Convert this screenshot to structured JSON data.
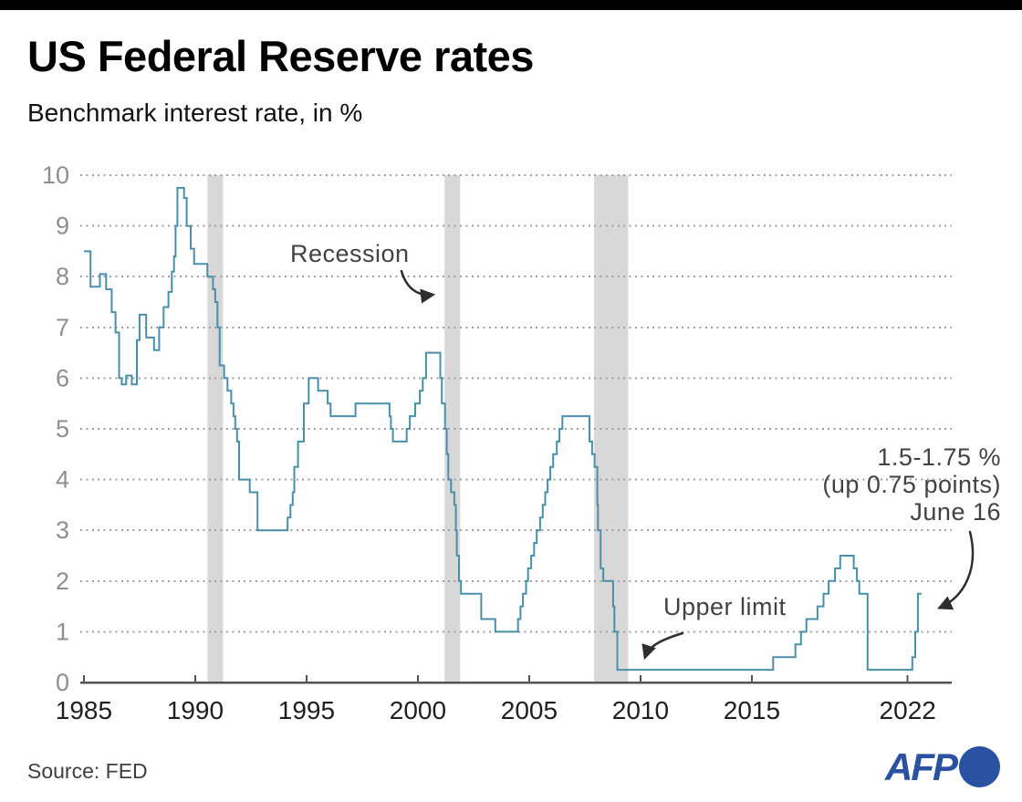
{
  "header": {
    "title": "US Federal Reserve rates",
    "subtitle": "Benchmark interest rate, in %"
  },
  "annotations": {
    "recession": "Recession",
    "upper_limit": "Upper limit",
    "latest_line1": "1.5-1.75 %",
    "latest_line2": "(up 0.75 points)",
    "latest_line3": "June 16"
  },
  "footer": {
    "source": "Source: FED",
    "logo_text": "AFP"
  },
  "colors": {
    "line": "#4a8fa9",
    "recession_band": "#d8d8d8",
    "gridline": "#9e9e9e",
    "axis": "#555555",
    "x_label": "#1f1f1f",
    "y_label": "#8e8e8e",
    "arrow": "#2e2e2e",
    "afp_blue": "#2b52a2"
  },
  "chart_data": {
    "type": "line",
    "step": true,
    "title": "US Federal Reserve rates",
    "ylabel": "Benchmark interest rate, in %",
    "xlim": [
      1984.84,
      2023.98
    ],
    "ylim": [
      0,
      10
    ],
    "grid": "dotted horizontal",
    "x_ticks": [
      {
        "year": 1985,
        "label": "1985"
      },
      {
        "year": 1990,
        "label": "1990"
      },
      {
        "year": 1995,
        "label": "1995"
      },
      {
        "year": 2000,
        "label": "2000"
      },
      {
        "year": 2005,
        "label": "2005"
      },
      {
        "year": 2010,
        "label": "2010"
      },
      {
        "year": 2015,
        "label": "2015"
      },
      {
        "year": 2022,
        "label": "2022"
      }
    ],
    "y_ticks": [
      0,
      1,
      2,
      3,
      4,
      5,
      6,
      7,
      8,
      9,
      10
    ],
    "recession_bands": [
      [
        1990.55,
        1991.25
      ],
      [
        2001.2,
        2001.9
      ],
      [
        2007.92,
        2009.45
      ]
    ],
    "series": [
      {
        "name": "Fed benchmark rate (upper limit)",
        "points": [
          [
            1985.0,
            8.5
          ],
          [
            1985.3,
            7.8
          ],
          [
            1985.72,
            8.05
          ],
          [
            1986.0,
            7.75
          ],
          [
            1986.25,
            7.3
          ],
          [
            1986.42,
            6.9
          ],
          [
            1986.58,
            6.0
          ],
          [
            1986.7,
            5.875
          ],
          [
            1986.9,
            6.05
          ],
          [
            1987.15,
            5.875
          ],
          [
            1987.38,
            6.75
          ],
          [
            1987.5,
            7.25
          ],
          [
            1987.8,
            6.8
          ],
          [
            1988.15,
            6.55
          ],
          [
            1988.38,
            7.0
          ],
          [
            1988.58,
            7.4
          ],
          [
            1988.8,
            7.7
          ],
          [
            1988.95,
            8.1
          ],
          [
            1989.05,
            8.4
          ],
          [
            1989.12,
            9.0
          ],
          [
            1989.2,
            9.75
          ],
          [
            1989.5,
            9.55
          ],
          [
            1989.62,
            9.0
          ],
          [
            1989.8,
            8.55
          ],
          [
            1989.95,
            8.25
          ],
          [
            1990.55,
            8.0
          ],
          [
            1990.8,
            7.75
          ],
          [
            1990.9,
            7.5
          ],
          [
            1991.0,
            7.0
          ],
          [
            1991.1,
            6.25
          ],
          [
            1991.3,
            6.0
          ],
          [
            1991.45,
            5.75
          ],
          [
            1991.62,
            5.5
          ],
          [
            1991.72,
            5.25
          ],
          [
            1991.8,
            5.0
          ],
          [
            1991.88,
            4.75
          ],
          [
            1991.97,
            4.0
          ],
          [
            1992.45,
            3.75
          ],
          [
            1992.8,
            3.0
          ],
          [
            1994.15,
            3.25
          ],
          [
            1994.28,
            3.5
          ],
          [
            1994.38,
            3.75
          ],
          [
            1994.45,
            4.25
          ],
          [
            1994.62,
            4.75
          ],
          [
            1994.88,
            5.5
          ],
          [
            1995.1,
            6.0
          ],
          [
            1995.52,
            5.75
          ],
          [
            1995.95,
            5.5
          ],
          [
            1996.08,
            5.25
          ],
          [
            1997.2,
            5.5
          ],
          [
            1998.73,
            5.25
          ],
          [
            1998.79,
            5.0
          ],
          [
            1998.88,
            4.75
          ],
          [
            1999.5,
            5.0
          ],
          [
            1999.64,
            5.25
          ],
          [
            1999.88,
            5.5
          ],
          [
            2000.09,
            5.75
          ],
          [
            2000.22,
            6.0
          ],
          [
            2000.37,
            6.5
          ],
          [
            2001.01,
            6.0
          ],
          [
            2001.08,
            5.5
          ],
          [
            2001.22,
            5.0
          ],
          [
            2001.3,
            4.5
          ],
          [
            2001.37,
            4.0
          ],
          [
            2001.49,
            3.75
          ],
          [
            2001.64,
            3.5
          ],
          [
            2001.71,
            3.0
          ],
          [
            2001.75,
            2.5
          ],
          [
            2001.85,
            2.0
          ],
          [
            2001.94,
            1.75
          ],
          [
            2002.85,
            1.25
          ],
          [
            2003.48,
            1.0
          ],
          [
            2004.5,
            1.25
          ],
          [
            2004.61,
            1.5
          ],
          [
            2004.72,
            1.75
          ],
          [
            2004.86,
            2.0
          ],
          [
            2004.95,
            2.25
          ],
          [
            2005.09,
            2.5
          ],
          [
            2005.22,
            2.75
          ],
          [
            2005.34,
            3.0
          ],
          [
            2005.49,
            3.25
          ],
          [
            2005.61,
            3.5
          ],
          [
            2005.72,
            3.75
          ],
          [
            2005.83,
            4.0
          ],
          [
            2005.95,
            4.25
          ],
          [
            2006.08,
            4.5
          ],
          [
            2006.24,
            4.75
          ],
          [
            2006.36,
            5.0
          ],
          [
            2006.49,
            5.25
          ],
          [
            2007.71,
            4.75
          ],
          [
            2007.83,
            4.5
          ],
          [
            2007.94,
            4.25
          ],
          [
            2008.06,
            3.5
          ],
          [
            2008.09,
            3.0
          ],
          [
            2008.21,
            2.25
          ],
          [
            2008.33,
            2.0
          ],
          [
            2008.77,
            1.5
          ],
          [
            2008.83,
            1.0
          ],
          [
            2008.96,
            0.25
          ],
          [
            2015.96,
            0.5
          ],
          [
            2016.96,
            0.75
          ],
          [
            2017.21,
            1.0
          ],
          [
            2017.45,
            1.25
          ],
          [
            2017.95,
            1.5
          ],
          [
            2018.22,
            1.75
          ],
          [
            2018.45,
            2.0
          ],
          [
            2018.74,
            2.25
          ],
          [
            2018.97,
            2.5
          ],
          [
            2019.58,
            2.25
          ],
          [
            2019.72,
            2.0
          ],
          [
            2019.83,
            1.75
          ],
          [
            2020.2,
            0.25
          ],
          [
            2022.21,
            0.5
          ],
          [
            2022.34,
            1.0
          ],
          [
            2022.46,
            1.75
          ]
        ]
      }
    ]
  }
}
